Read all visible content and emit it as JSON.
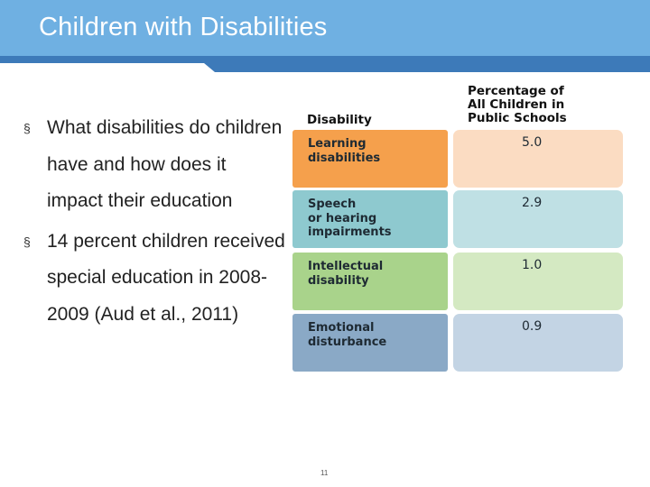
{
  "slide": {
    "title": "Children with Disabilities",
    "page_number": "11",
    "colors": {
      "header": "#6fb0e2",
      "stripe_dark": "#3d7ab9"
    }
  },
  "bullets": [
    {
      "marker": "§",
      "text": "What disabilities do children have and how does it impact their education"
    },
    {
      "marker": "§",
      "text": "14 percent children received special education in 2008-2009 (Aud et al., 2011)"
    }
  ],
  "table": {
    "header_left": "Disability",
    "header_right": "Percentage of\nAll Children in\nPublic Schools",
    "rows": [
      {
        "label": "Learning\ndisabilities",
        "value": "5.0",
        "label_color": "#f5a04c",
        "value_color": "#fbdcc2"
      },
      {
        "label": "Speech\nor hearing\nimpairments",
        "value": "2.9",
        "label_color": "#8ec9cf",
        "value_color": "#bfe0e4"
      },
      {
        "label": "Intellectual\ndisability",
        "value": "1.0",
        "label_color": "#a9d38b",
        "value_color": "#d4e9c2"
      },
      {
        "label": "Emotional\ndisturbance",
        "value": "0.9",
        "label_color": "#8aa9c6",
        "value_color": "#c3d4e4"
      }
    ]
  }
}
